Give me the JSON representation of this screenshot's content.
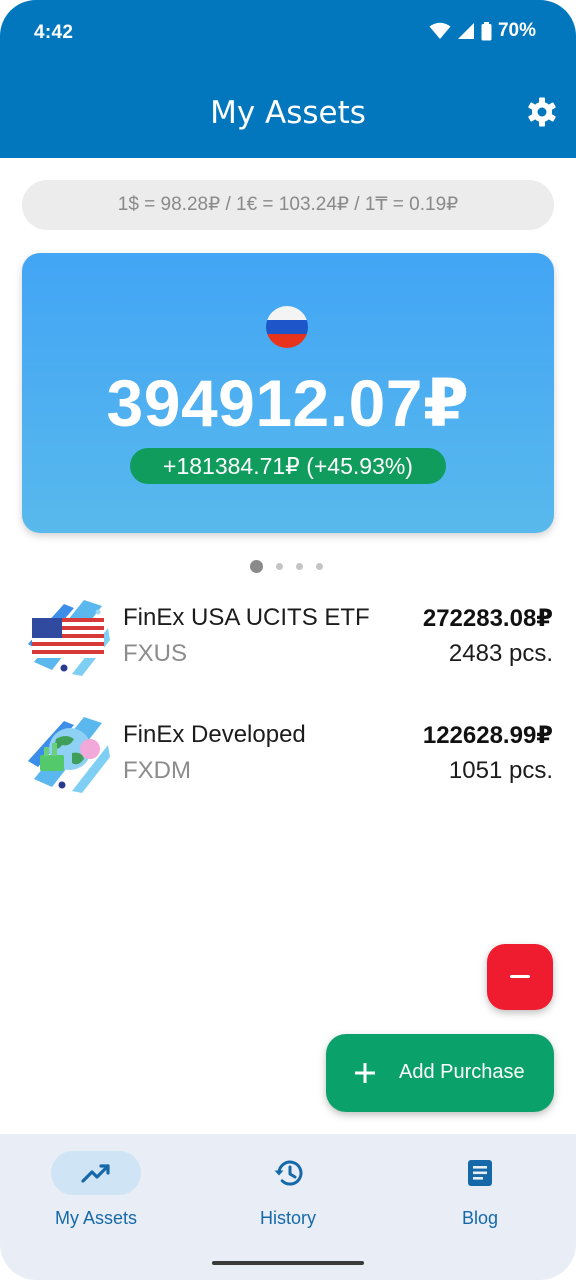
{
  "status_bar": {
    "time": "4:42",
    "battery": "70%"
  },
  "app_bar": {
    "title": "My Assets"
  },
  "rates": {
    "text": "1$ = 98.28₽ / 1€ = 103.24₽ / 1₸ = 0.19₽"
  },
  "summary": {
    "total": "394912.07₽",
    "gain": "+181384.71₽ (+45.93%)",
    "pager_active": 1,
    "pager_count": 4
  },
  "assets": [
    {
      "name": "FinEx USA UCITS ETF",
      "ticker": "FXUS",
      "value": "272283.08₽",
      "quantity": "2483 pcs."
    },
    {
      "name": "FinEx Developed",
      "ticker": "FXDM",
      "value": "122628.99₽",
      "quantity": "1051 pcs."
    }
  ],
  "fab": {
    "add_label": "Add Purchase"
  },
  "nav": {
    "items": [
      {
        "label": "My Assets",
        "icon": "trending-up-icon",
        "active": true
      },
      {
        "label": "History",
        "icon": "history-icon",
        "active": false
      },
      {
        "label": "Blog",
        "icon": "article-icon",
        "active": false
      }
    ]
  },
  "colors": {
    "app_bar": "#0277bd",
    "card_top": "#42a5f5",
    "gain_green": "#109c5c",
    "fab_add": "#0aa16a",
    "fab_remove": "#ef1c2f",
    "nav_bg": "#e9eef6",
    "nav_accent": "#1669a8"
  }
}
